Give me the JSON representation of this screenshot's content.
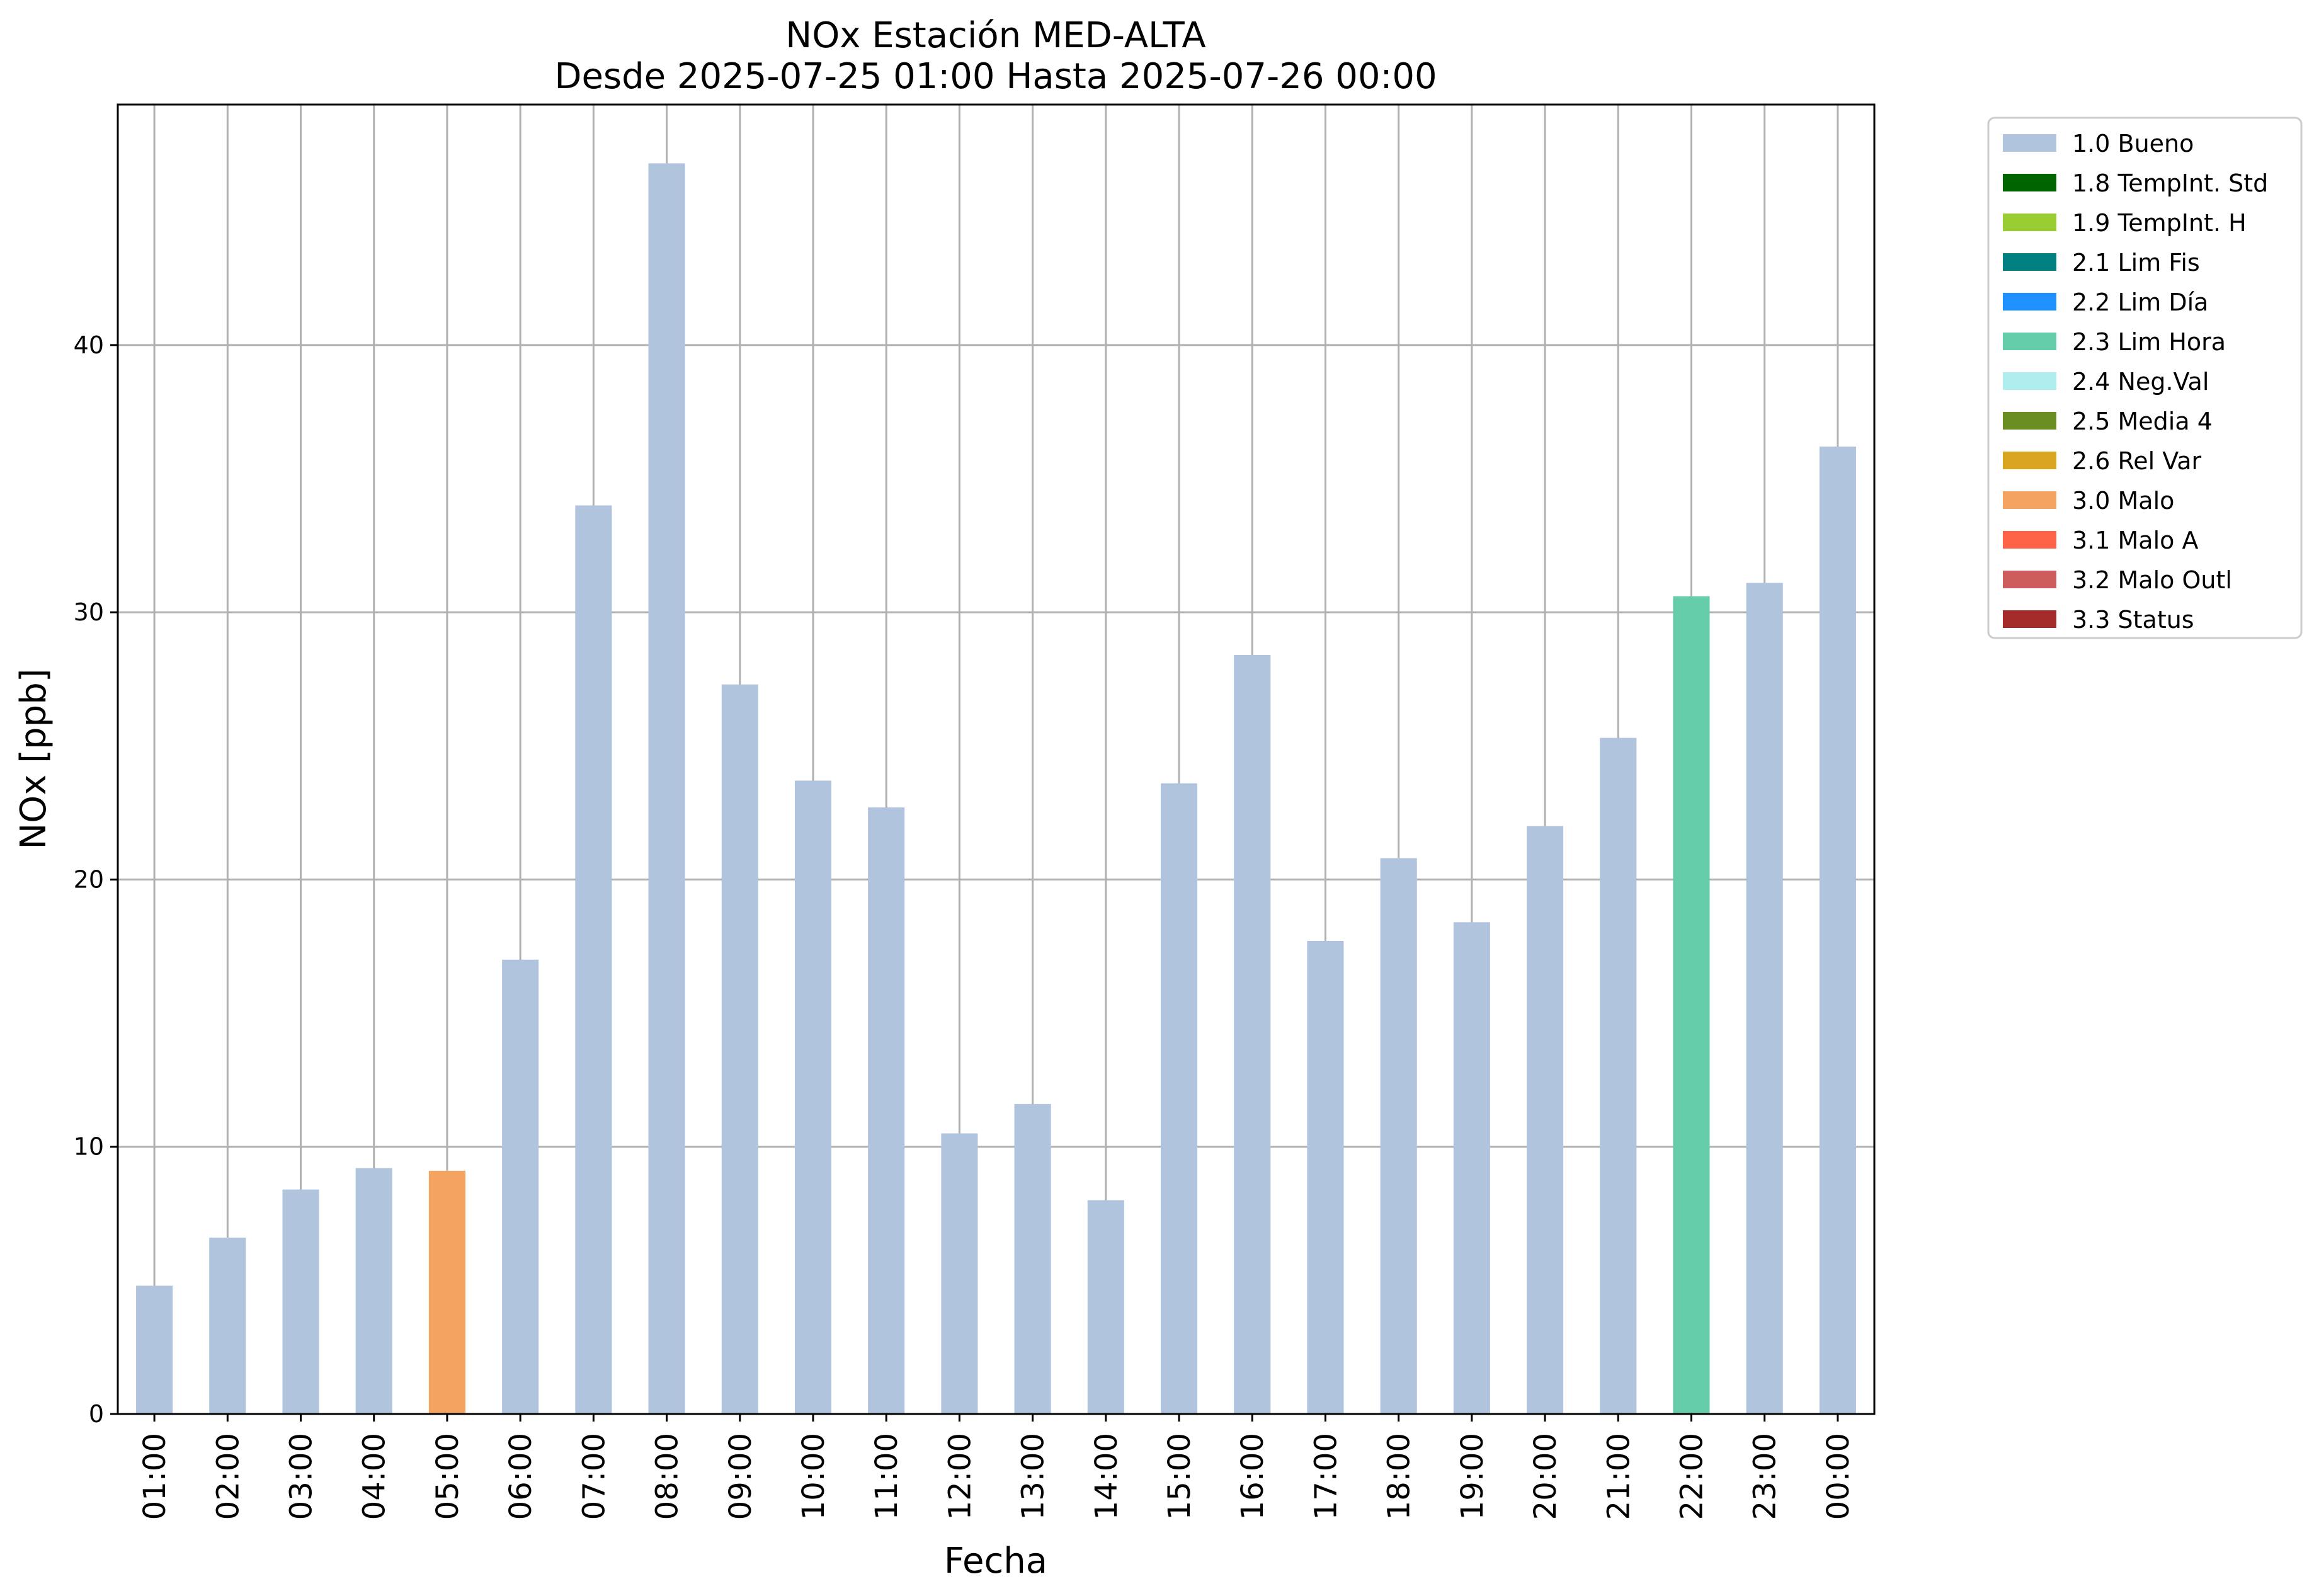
{
  "chart_data": {
    "type": "bar",
    "title": "NOx Estación MED-ALTA",
    "subtitle": "Desde 2025-07-25 01:00 Hasta 2025-07-26 00:00",
    "xlabel": "Fecha",
    "ylabel": "NOx [ppb]",
    "ylim": [
      0,
      49
    ],
    "yticks": [
      "0",
      "10",
      "20",
      "30",
      "40"
    ],
    "grid": true,
    "legend_position": "outside-right",
    "categories": [
      "01:00",
      "02:00",
      "03:00",
      "04:00",
      "05:00",
      "06:00",
      "07:00",
      "08:00",
      "09:00",
      "10:00",
      "11:00",
      "12:00",
      "13:00",
      "14:00",
      "15:00",
      "16:00",
      "17:00",
      "18:00",
      "19:00",
      "20:00",
      "21:00",
      "22:00",
      "23:00",
      "00:00"
    ],
    "values": [
      4.8,
      6.6,
      8.4,
      9.2,
      9.1,
      17.0,
      34.0,
      46.8,
      27.3,
      23.7,
      22.7,
      10.5,
      11.6,
      8.0,
      23.6,
      28.4,
      17.7,
      20.8,
      18.4,
      22.0,
      25.3,
      30.6,
      31.1,
      36.2
    ],
    "flags": [
      "1.0 Bueno",
      "1.0 Bueno",
      "1.0 Bueno",
      "1.0 Bueno",
      "3.0 Malo",
      "1.0 Bueno",
      "1.0 Bueno",
      "1.0 Bueno",
      "1.0 Bueno",
      "1.0 Bueno",
      "1.0 Bueno",
      "1.0 Bueno",
      "1.0 Bueno",
      "1.0 Bueno",
      "1.0 Bueno",
      "1.0 Bueno",
      "1.0 Bueno",
      "1.0 Bueno",
      "1.0 Bueno",
      "1.0 Bueno",
      "1.0 Bueno",
      "2.3 Lim Hora",
      "1.0 Bueno",
      "1.0 Bueno"
    ],
    "legend": [
      {
        "label": "1.0 Bueno",
        "color": "#b0c4de"
      },
      {
        "label": "1.8 TempInt. Std",
        "color": "#006400"
      },
      {
        "label": "1.9 TempInt. H",
        "color": "#9acd32"
      },
      {
        "label": "2.1 Lim Fis",
        "color": "#008080"
      },
      {
        "label": "2.2 Lim Día",
        "color": "#1e90ff"
      },
      {
        "label": "2.3 Lim Hora",
        "color": "#66cdaa"
      },
      {
        "label": "2.4 Neg.Val",
        "color": "#afeeee"
      },
      {
        "label": "2.5 Media 4",
        "color": "#6b8e23"
      },
      {
        "label": "2.6 Rel Var",
        "color": "#daa520"
      },
      {
        "label": "3.0 Malo",
        "color": "#f4a460"
      },
      {
        "label": "3.1 Malo A",
        "color": "#ff6347"
      },
      {
        "label": "3.2 Malo Outl",
        "color": "#cd5c5c"
      },
      {
        "label": "3.3 Status",
        "color": "#a52a2a"
      }
    ]
  }
}
